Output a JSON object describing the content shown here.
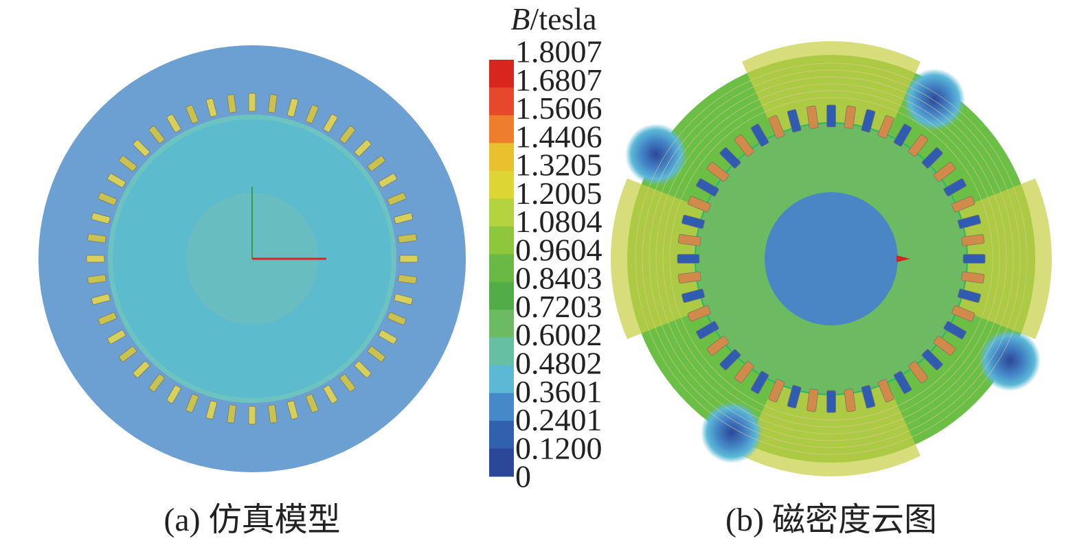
{
  "colorbar": {
    "title_symbol": "B",
    "title_unit": "/tesla",
    "labels": [
      "1.8007",
      "1.6807",
      "1.5606",
      "1.4406",
      "1.3205",
      "1.2005",
      "1.0804",
      "0.9604",
      "0.8403",
      "0.7203",
      "0.6002",
      "0.4802",
      "0.3601",
      "0.2401",
      "0.1200",
      "0"
    ],
    "colors": [
      "#d8261f",
      "#e5482a",
      "#ee7e2e",
      "#e8c12f",
      "#dcd534",
      "#b3d43f",
      "#8ec63e",
      "#6ab944",
      "#52ad48",
      "#6cbb62",
      "#67bfa3",
      "#5bb9d6",
      "#4589c8",
      "#3160ae",
      "#2b4798"
    ]
  },
  "captions": {
    "a": "(a) 仿真模型",
    "b": "(b) 磁密度云图"
  }
}
